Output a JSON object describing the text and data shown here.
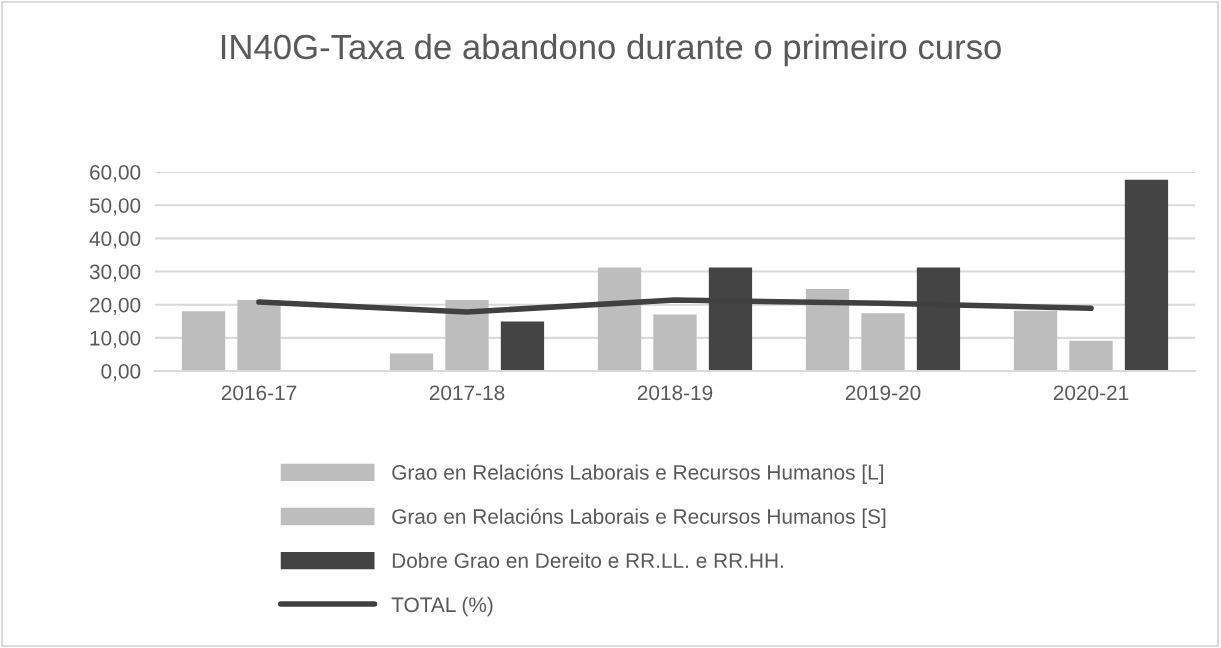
{
  "chart_data": {
    "type": "bar",
    "title": "IN40G-Taxa de abandono durante o primeiro curso",
    "categories": [
      "2016-17",
      "2017-18",
      "2018-19",
      "2019-20",
      "2020-21"
    ],
    "series": [
      {
        "name": "Grao en Relacións Laborais e Recursos Humanos [L]",
        "color": "#bdbdbd",
        "values": [
          18.0,
          5.3,
          31.2,
          24.7,
          18.2
        ]
      },
      {
        "name": "Grao en Relacións Laborais e Recursos Humanos [S]",
        "color": "#bdbdbd",
        "values": [
          21.4,
          21.4,
          17.0,
          17.4,
          9.1
        ]
      },
      {
        "name": "Dobre Grao en Dereito e RR.LL. e RR.HH.",
        "color": "#444444",
        "values": [
          null,
          14.9,
          31.2,
          31.2,
          57.7
        ]
      },
      {
        "name": "TOTAL (%)",
        "type": "line",
        "color": "#404040",
        "values": [
          20.8,
          17.8,
          21.4,
          20.4,
          18.9
        ]
      }
    ],
    "ylim": [
      0,
      60
    ],
    "yticks": [
      {
        "value": 0,
        "label": "0,00"
      },
      {
        "value": 10,
        "label": "10,00"
      },
      {
        "value": 20,
        "label": "20,00"
      },
      {
        "value": 30,
        "label": "30,00"
      },
      {
        "value": 40,
        "label": "40,00"
      },
      {
        "value": 50,
        "label": "50,00"
      },
      {
        "value": 60,
        "label": "60,00"
      }
    ],
    "grid": "y",
    "legend": "bottom",
    "marker": "none",
    "line_style": "solid"
  }
}
